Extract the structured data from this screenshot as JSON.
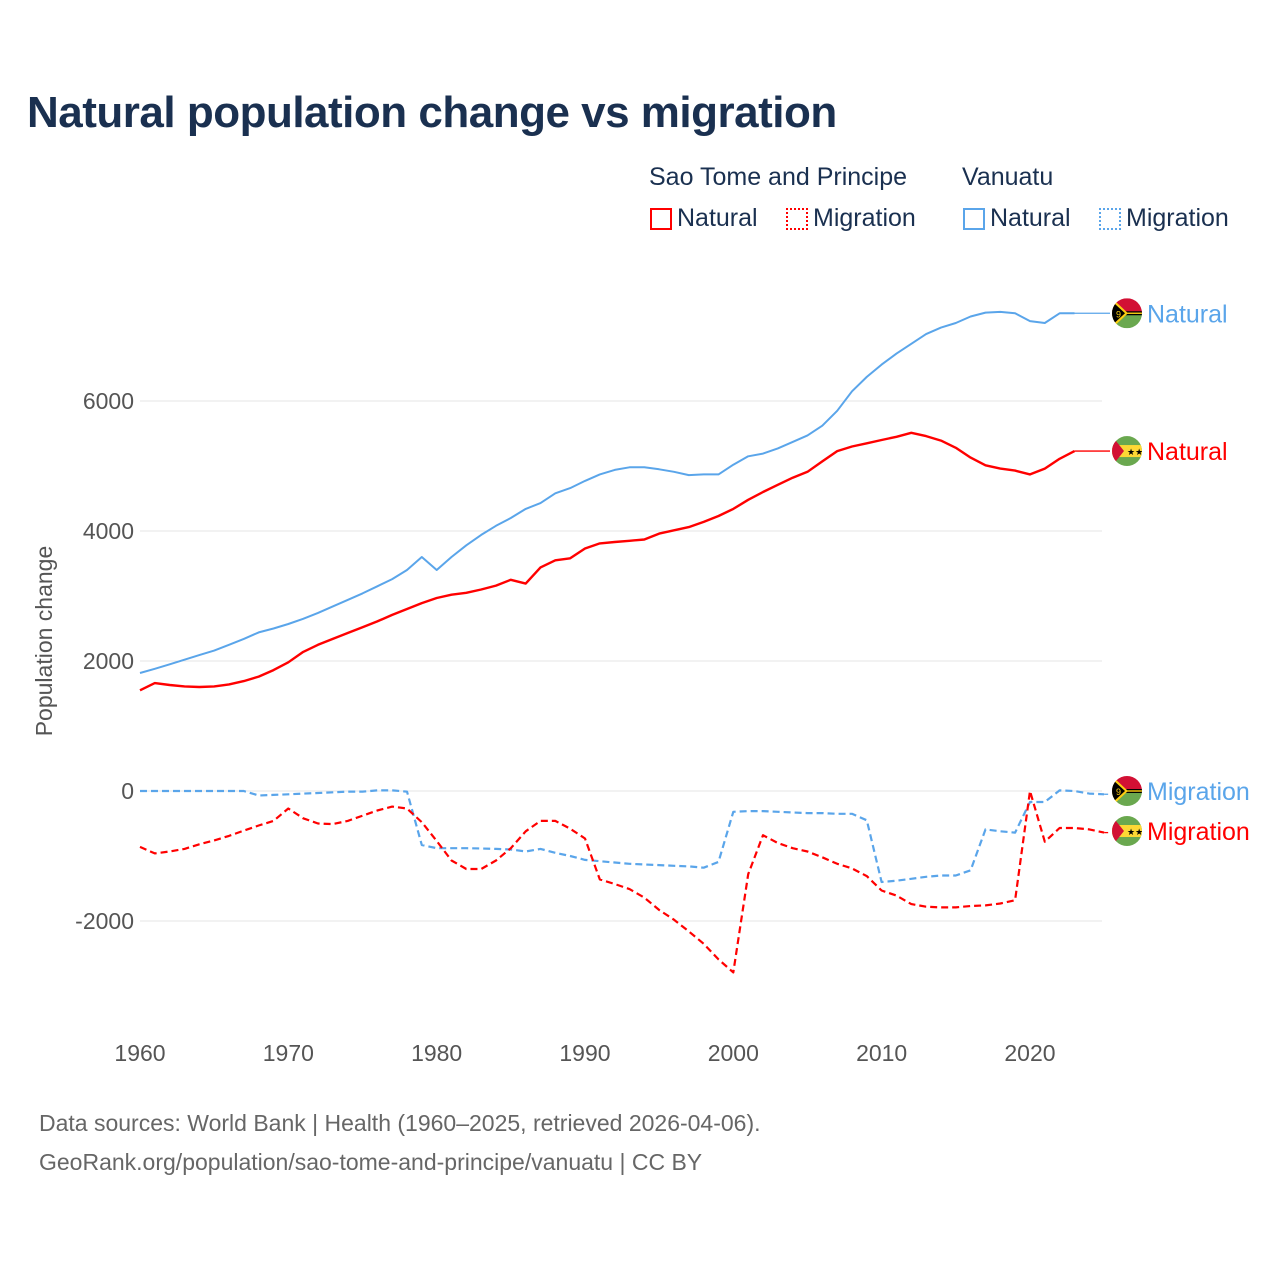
{
  "chart_data": {
    "type": "line",
    "title": "Natural population change vs migration",
    "xlabel": "",
    "ylabel": "Population change",
    "xlim": [
      1960,
      2026
    ],
    "ylim": [
      -3000,
      7500
    ],
    "x_ticks": [
      "1960",
      "1970",
      "1980",
      "1990",
      "2000",
      "2010",
      "2020"
    ],
    "y_ticks": [
      "6000",
      "4000",
      "2000",
      "0",
      "-2000"
    ],
    "y_tick_values": [
      6000,
      4000,
      2000,
      0,
      -2000
    ],
    "grid": true,
    "legend": {
      "placement": "top-right",
      "groups": [
        {
          "country": "Sao Tome and Principe",
          "entries": [
            "Natural",
            "Migration"
          ]
        },
        {
          "country": "Vanuatu",
          "entries": [
            "Natural",
            "Migration"
          ]
        }
      ]
    },
    "series": [
      {
        "name": "Vanuatu Natural",
        "label": "Natural",
        "country": "Vanuatu",
        "color": "#5aa5ea",
        "dash": false,
        "start": 1960,
        "values": [
          1815,
          1880,
          1950,
          2020,
          2090,
          2160,
          2250,
          2340,
          2440,
          2500,
          2570,
          2650,
          2740,
          2840,
          2940,
          3040,
          3150,
          3260,
          3400,
          3600,
          3400,
          3600,
          3780,
          3940,
          4080,
          4200,
          4340,
          4430,
          4580,
          4660,
          4770,
          4870,
          4940,
          4980,
          4980,
          4950,
          4910,
          4860,
          4870,
          4870,
          5020,
          5150,
          5190,
          5270,
          5370,
          5470,
          5620,
          5850,
          6150,
          6370,
          6560,
          6730,
          6880,
          7030,
          7130,
          7200,
          7300,
          7360,
          7370,
          7350,
          7230,
          7200,
          7350,
          7350
        ]
      },
      {
        "name": "Sao Tome and Principe Natural",
        "label": "Natural",
        "country": "Sao Tome and Principe",
        "color": "#ff0000",
        "dash": false,
        "start": 1960,
        "values": [
          1550,
          1660,
          1630,
          1610,
          1600,
          1610,
          1640,
          1690,
          1760,
          1860,
          1980,
          2140,
          2250,
          2340,
          2430,
          2520,
          2610,
          2710,
          2800,
          2890,
          2970,
          3020,
          3050,
          3100,
          3160,
          3250,
          3190,
          3440,
          3550,
          3580,
          3730,
          3810,
          3830,
          3850,
          3870,
          3960,
          4010,
          4060,
          4140,
          4230,
          4340,
          4480,
          4600,
          4710,
          4820,
          4910,
          5070,
          5230,
          5300,
          5350,
          5400,
          5450,
          5510,
          5460,
          5390,
          5280,
          5130,
          5010,
          4960,
          4930,
          4870,
          4960,
          5110,
          5230
        ]
      },
      {
        "name": "Vanuatu Migration",
        "label": "Migration",
        "country": "Vanuatu",
        "color": "#5aa5ea",
        "dash": true,
        "start": 1960,
        "values": [
          0,
          0,
          0,
          0,
          0,
          0,
          0,
          0,
          -70,
          -60,
          -50,
          -40,
          -30,
          -20,
          -10,
          -10,
          10,
          10,
          -10,
          -830,
          -880,
          -880,
          -880,
          -885,
          -890,
          -900,
          -930,
          -890,
          -950,
          -1000,
          -1060,
          -1080,
          -1100,
          -1120,
          -1130,
          -1140,
          -1150,
          -1160,
          -1180,
          -1090,
          -320,
          -310,
          -310,
          -320,
          -330,
          -340,
          -340,
          -350,
          -350,
          -450,
          -1400,
          -1380,
          -1350,
          -1320,
          -1300,
          -1300,
          -1220,
          -590,
          -620,
          -640,
          -170,
          -170,
          10,
          0,
          -40,
          -50
        ]
      },
      {
        "name": "Sao Tome and Principe Migration",
        "label": "Migration",
        "country": "Sao Tome and Principe",
        "color": "#ff0000",
        "dash": true,
        "start": 1960,
        "values": [
          -860,
          -960,
          -930,
          -890,
          -820,
          -760,
          -690,
          -610,
          -530,
          -460,
          -270,
          -420,
          -500,
          -510,
          -460,
          -380,
          -300,
          -240,
          -270,
          -480,
          -770,
          -1070,
          -1200,
          -1200,
          -1070,
          -880,
          -620,
          -460,
          -460,
          -580,
          -730,
          -1360,
          -1430,
          -1510,
          -1640,
          -1830,
          -1980,
          -2160,
          -2350,
          -2590,
          -2790,
          -1280,
          -680,
          -800,
          -880,
          -930,
          -1020,
          -1120,
          -1190,
          -1310,
          -1530,
          -1610,
          -1740,
          -1780,
          -1790,
          -1790,
          -1770,
          -1760,
          -1730,
          -1680,
          0,
          -780,
          -570,
          -570,
          -590,
          -640
        ]
      }
    ]
  },
  "footer": {
    "line1": "Data sources: World Bank | Health (1960–2025, retrieved 2026-04-06).",
    "line2": "GeoRank.org/population/sao-tome-and-principe/vanuatu | CC BY"
  }
}
